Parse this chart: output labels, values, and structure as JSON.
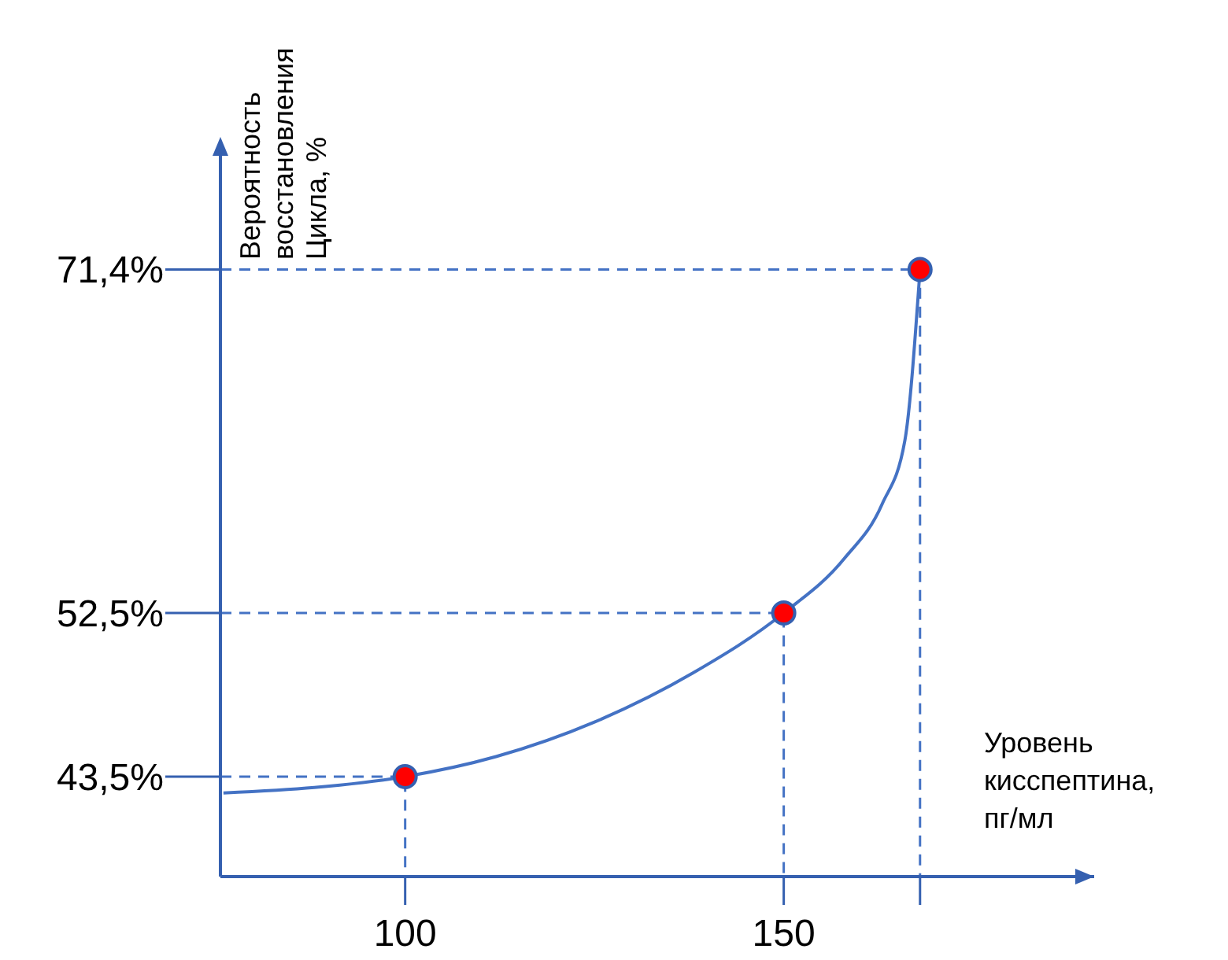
{
  "chart_data": {
    "type": "line",
    "xlabel": "Уровень\nкисспептина,\nпг/мл",
    "ylabel": "Вероятность\nвосстановления\nЦикла, %",
    "xlim": [
      75.6,
      191
    ],
    "ylim": [
      38,
      78
    ],
    "xticks": [
      100,
      150,
      {
        "value": 168,
        "label": null
      }
    ],
    "yticks": [
      {
        "value": 43.5,
        "label": "43,5%"
      },
      {
        "value": 52.5,
        "label": "52,5%"
      },
      {
        "value": 71.4,
        "label": "71,4%"
      }
    ],
    "grid": false,
    "series": [
      {
        "type": "line",
        "color": "#4472c4",
        "line_style": "dashed",
        "x": [
          75.6,
          100,
          100
        ],
        "values": [
          43.5,
          43.5,
          38
        ]
      },
      {
        "type": "line",
        "color": "#4472c4",
        "line_style": "dashed",
        "x": [
          75.6,
          150,
          150
        ],
        "values": [
          52.5,
          52.5,
          38
        ]
      },
      {
        "type": "line",
        "color": "#4472c4",
        "line_style": "dashed",
        "x": [
          75.6,
          168,
          168
        ],
        "values": [
          71.4,
          71.4,
          38
        ]
      },
      {
        "color": "#4472c4",
        "x": [
          76,
          88,
          100,
          112,
          125,
          138,
          150,
          158,
          163,
          166,
          168
        ],
        "values": [
          42.6,
          42.9,
          43.5,
          44.6,
          46.5,
          49.2,
          52.5,
          55.5,
          58.5,
          62,
          71.4
        ]
      },
      {
        "type": "scatter",
        "color": "#ff0000",
        "marker": "circle",
        "x": [
          100,
          150,
          168
        ],
        "values": [
          43.5,
          52.5,
          71.4
        ]
      }
    ]
  }
}
